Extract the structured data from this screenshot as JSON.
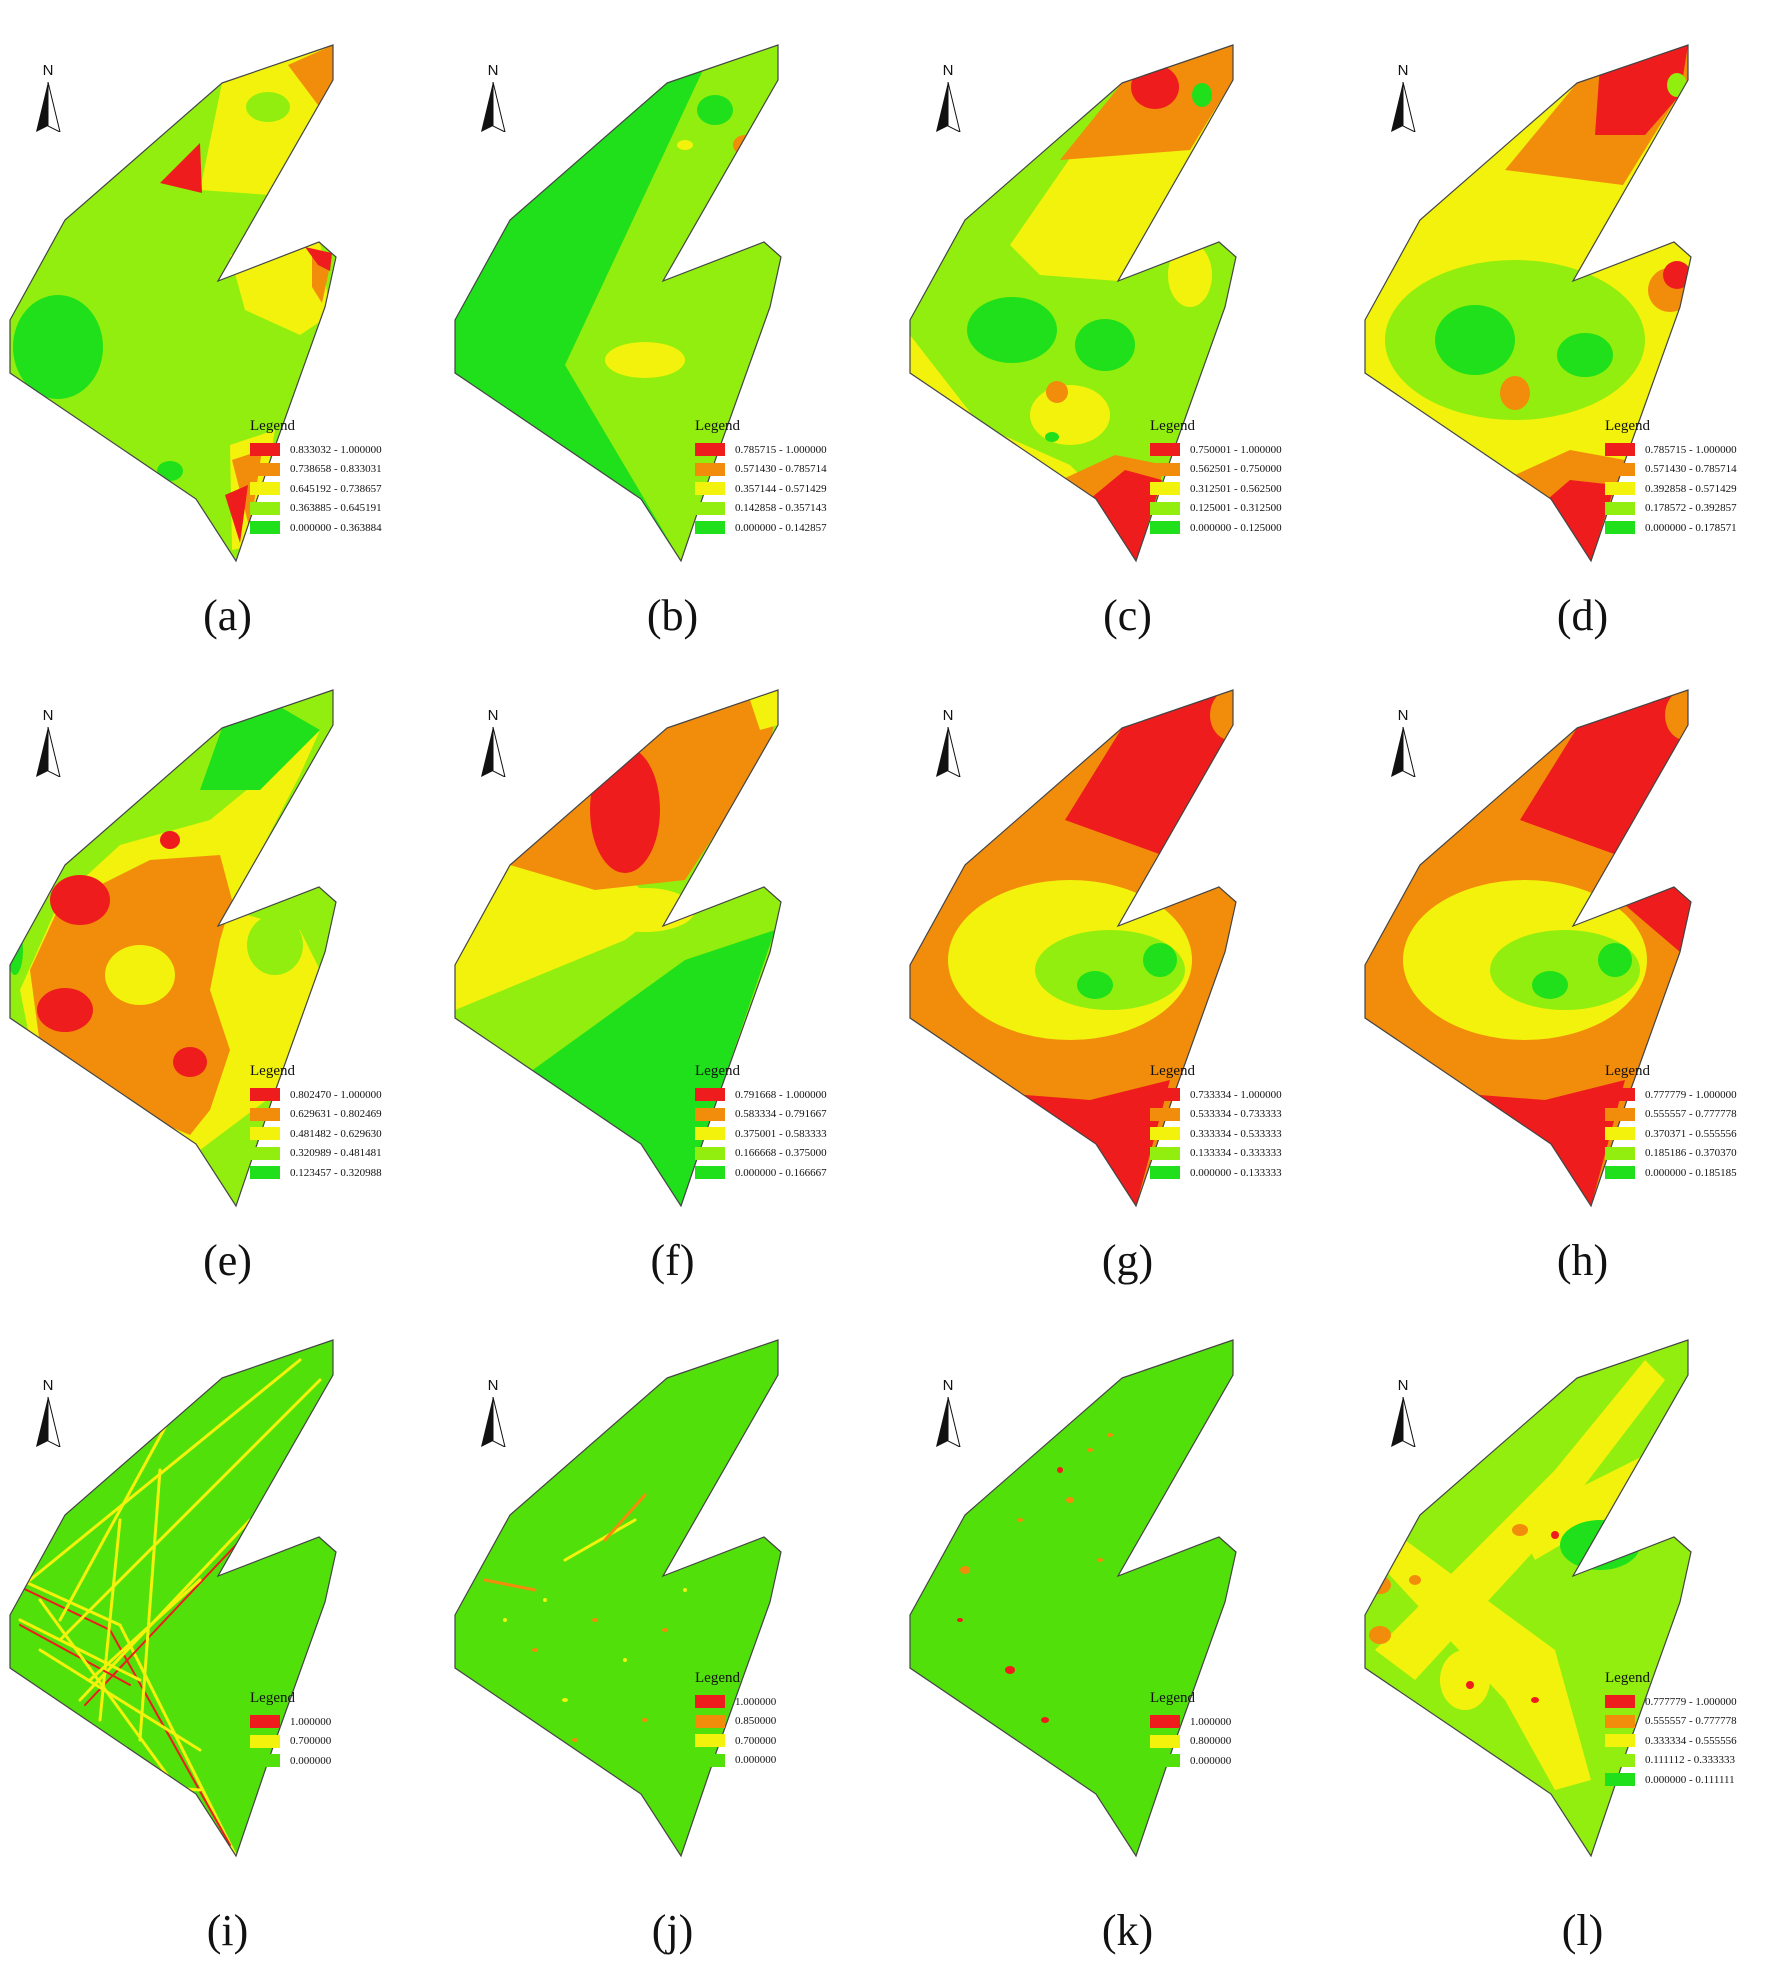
{
  "colors": {
    "red": "#ee1c1c",
    "orange": "#f28c0b",
    "yellow": "#f2f20c",
    "lightgreen": "#92ee0e",
    "green": "#1fe01a",
    "base": "#52e00a",
    "line": "#444444"
  },
  "north_label": "N",
  "legend_title": "Legend",
  "panels": [
    {
      "id": "a",
      "caption": "(a)",
      "classes": [
        "0.833032 - 1.000000",
        "0.738658 - 0.833031",
        "0.645192 - 0.738657",
        "0.363885 - 0.645191",
        "0.000000 - 0.363884"
      ]
    },
    {
      "id": "b",
      "caption": "(b)",
      "classes": [
        "0.785715 - 1.000000",
        "0.571430 - 0.785714",
        "0.357144 - 0.571429",
        "0.142858 - 0.357143",
        "0.000000 - 0.142857"
      ]
    },
    {
      "id": "c",
      "caption": "(c)",
      "classes": [
        "0.750001 - 1.000000",
        "0.562501 - 0.750000",
        "0.312501 - 0.562500",
        "0.125001 - 0.312500",
        "0.000000 - 0.125000"
      ]
    },
    {
      "id": "d",
      "caption": "(d)",
      "classes": [
        "0.785715 - 1.000000",
        "0.571430 - 0.785714",
        "0.392858 - 0.571429",
        "0.178572 - 0.392857",
        "0.000000 - 0.178571"
      ]
    },
    {
      "id": "e",
      "caption": "(e)",
      "classes": [
        "0.802470 - 1.000000",
        "0.629631 - 0.802469",
        "0.481482 - 0.629630",
        "0.320989 - 0.481481",
        "0.123457 - 0.320988"
      ]
    },
    {
      "id": "f",
      "caption": "(f)",
      "classes": [
        "0.791668 - 1.000000",
        "0.583334 - 0.791667",
        "0.375001 - 0.583333",
        "0.166668 - 0.375000",
        "0.000000 - 0.166667"
      ]
    },
    {
      "id": "g",
      "caption": "(g)",
      "classes": [
        "0.733334 - 1.000000",
        "0.533334 - 0.733333",
        "0.333334 - 0.533333",
        "0.133334 - 0.333333",
        "0.000000 - 0.133333"
      ]
    },
    {
      "id": "h",
      "caption": "(h)",
      "classes": [
        "0.777779 - 1.000000",
        "0.555557 - 0.777778",
        "0.370371 - 0.555556",
        "0.185186 - 0.370370",
        "0.000000 - 0.185185"
      ]
    },
    {
      "id": "i",
      "caption": "(i)",
      "classes": [
        "1.000000",
        "0.700000",
        "0.000000"
      ]
    },
    {
      "id": "j",
      "caption": "(j)",
      "classes": [
        "1.000000",
        "0.850000",
        "0.700000",
        "0.000000"
      ]
    },
    {
      "id": "k",
      "caption": "(k)",
      "classes": [
        "1.000000",
        "0.800000",
        "0.000000"
      ]
    },
    {
      "id": "l",
      "caption": "(l)",
      "classes": [
        "0.777779 - 1.000000",
        "0.555557 - 0.777778",
        "0.333334 - 0.555556",
        "0.111112 - 0.333333",
        "0.000000 - 0.111111"
      ]
    }
  ]
}
